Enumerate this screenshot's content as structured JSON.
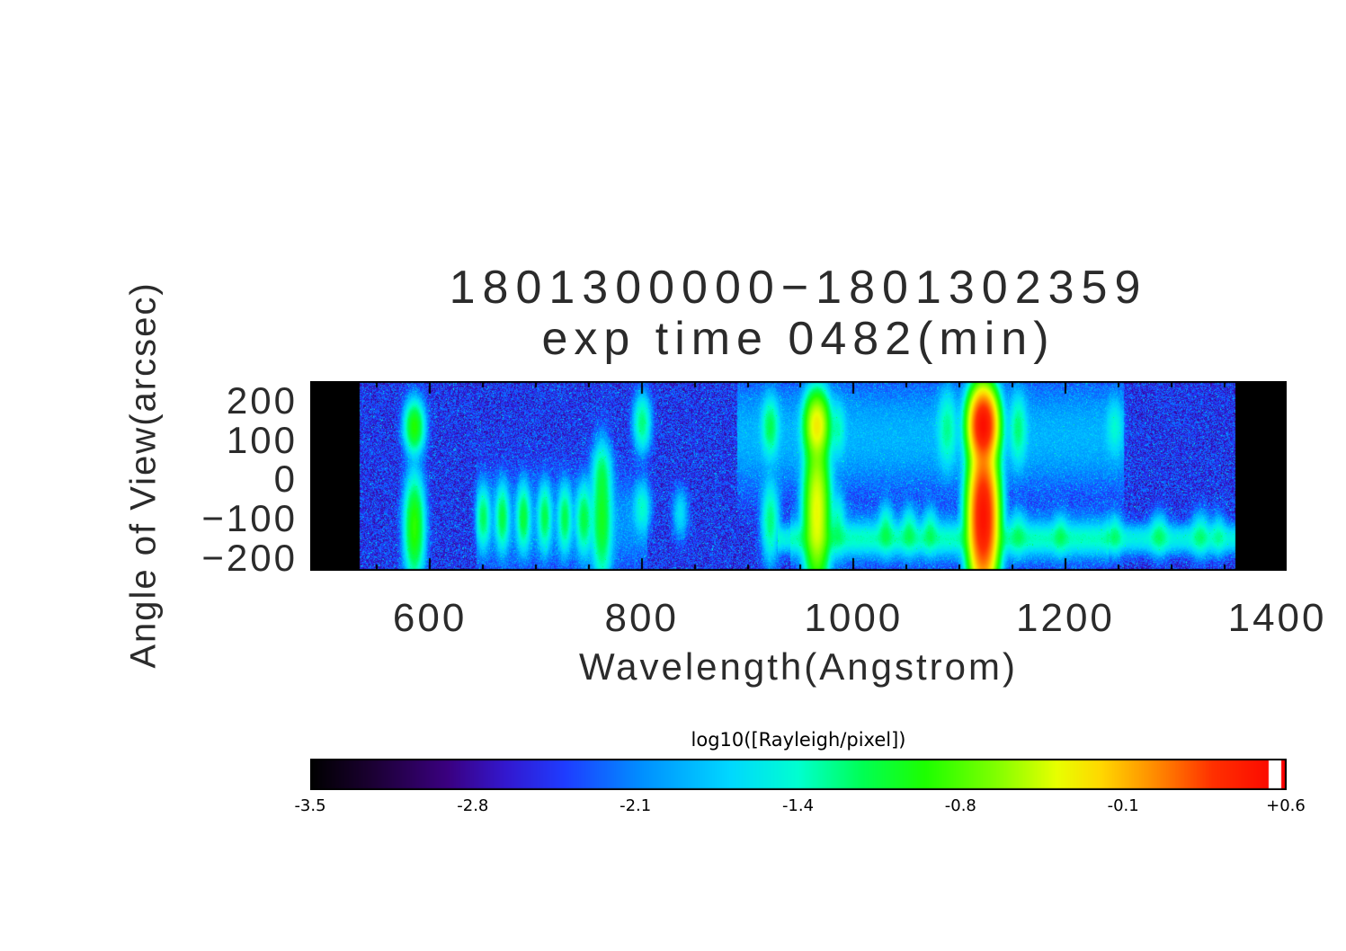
{
  "page": {
    "background": "#ffffff",
    "text_color": "#2b2b2b"
  },
  "title": {
    "line1": "1801300000−1801302359",
    "line2": "exp time 0482(min)"
  },
  "x_axis": {
    "label": "Wavelength(Angstrom)",
    "tick_labels": [
      "600",
      "800",
      "1000",
      "1200",
      "1400"
    ]
  },
  "y_axis": {
    "label": "Angle of View(arcsec)",
    "tick_labels": [
      "200",
      "100",
      "0",
      "−100",
      "−200"
    ]
  },
  "colorbar": {
    "label": "log10([Rayleigh/pixel])",
    "tick_labels": [
      "-3.5",
      "-2.8",
      "-2.1",
      "-1.4",
      "-0.8",
      "-0.1",
      "+0.6"
    ]
  },
  "chart_data": {
    "type": "heatmap",
    "title": "1801300000-1801302359",
    "subtitle": "exp time 0482(min)",
    "xlabel": "Wavelength(Angstrom)",
    "ylabel": "Angle of View(arcsec)",
    "value_label": "log10([Rayleigh/pixel])",
    "xlim": [
      487,
      1408
    ],
    "ylim": [
      -230,
      250
    ],
    "x_ticks": [
      600,
      800,
      1000,
      1200,
      1400
    ],
    "x_minor_step": 50,
    "y_ticks": [
      200,
      100,
      0,
      -100,
      -200
    ],
    "y_minor_step": 50,
    "value_range": [
      -3.5,
      0.6
    ],
    "colorbar_ticks": [
      -3.5,
      -2.8,
      -2.1,
      -1.4,
      -0.8,
      -0.1,
      0.6
    ],
    "colorbar_white_notch": [
      0.982,
      0.995
    ],
    "data_wavelength_range": [
      533,
      1360
    ],
    "colormap_stops": [
      [
        0.0,
        "#000000"
      ],
      [
        0.06,
        "#1a0030"
      ],
      [
        0.14,
        "#3a0080"
      ],
      [
        0.2,
        "#3318cf"
      ],
      [
        0.26,
        "#1f3cff"
      ],
      [
        0.34,
        "#0090ff"
      ],
      [
        0.43,
        "#00d8ff"
      ],
      [
        0.5,
        "#00ffd0"
      ],
      [
        0.565,
        "#00ff55"
      ],
      [
        0.63,
        "#1dff00"
      ],
      [
        0.7,
        "#7dff00"
      ],
      [
        0.765,
        "#e8ff00"
      ],
      [
        0.81,
        "#ffd800"
      ],
      [
        0.865,
        "#ff8c00"
      ],
      [
        0.925,
        "#ff3000"
      ],
      [
        1.0,
        "#fb0000"
      ]
    ],
    "noise": {
      "base": -2.5,
      "spread": 0.8,
      "sparkle_p": 0.02,
      "sparkle_gain": 5
    },
    "features": [
      {
        "x": 585,
        "sx": 5,
        "segments": [
          {
            "y": 135,
            "sy": 35,
            "peak": -0.92
          },
          {
            "y": -120,
            "sy": 68,
            "peak": -0.88
          }
        ]
      },
      {
        "x": 650,
        "sx": 3.5,
        "segments": [
          {
            "y": -95,
            "sy": 42,
            "peak": -1.25
          }
        ]
      },
      {
        "x": 668,
        "sx": 3.5,
        "segments": [
          {
            "y": -95,
            "sy": 45,
            "peak": -1.18
          }
        ]
      },
      {
        "x": 688,
        "sx": 3.5,
        "segments": [
          {
            "y": -95,
            "sy": 45,
            "peak": -1.15
          }
        ]
      },
      {
        "x": 708,
        "sx": 3.5,
        "segments": [
          {
            "y": -95,
            "sy": 45,
            "peak": -1.2
          }
        ]
      },
      {
        "x": 727,
        "sx": 3.5,
        "segments": [
          {
            "y": -98,
            "sy": 45,
            "peak": -1.2
          }
        ]
      },
      {
        "x": 745,
        "sx": 4,
        "segments": [
          {
            "y": -100,
            "sy": 48,
            "peak": -1.18
          }
        ]
      },
      {
        "x": 762,
        "sx": 5,
        "segments": [
          {
            "y": -100,
            "sy": 85,
            "peak": -1.05
          },
          {
            "y": 20,
            "sy": 40,
            "peak": -1.5
          }
        ]
      },
      {
        "x": 800,
        "sx": 4.5,
        "segments": [
          {
            "y": 145,
            "sy": 40,
            "peak": -1.3
          },
          {
            "y": -70,
            "sy": 35,
            "peak": -1.55
          }
        ]
      },
      {
        "x": 836,
        "sx": 4,
        "segments": [
          {
            "y": -85,
            "sy": 35,
            "peak": -1.75
          }
        ]
      },
      {
        "x": 921,
        "sx": 4.5,
        "segments": [
          {
            "y": 135,
            "sy": 42,
            "peak": -1.25
          },
          {
            "y": -105,
            "sy": 55,
            "peak": -1.3
          }
        ]
      },
      {
        "x": 965,
        "sx": 6,
        "segments": [
          {
            "y": 140,
            "sy": 42,
            "peak": -0.3
          },
          {
            "y": -80,
            "sy": 95,
            "peak": -0.35
          }
        ]
      },
      {
        "x": 985,
        "sx": 4,
        "segments": [
          {
            "y": 130,
            "sy": 40,
            "peak": -1.55
          },
          {
            "y": -110,
            "sy": 45,
            "peak": -1.5
          }
        ]
      },
      {
        "x": 1030,
        "sx": 4,
        "segments": [
          {
            "y": -125,
            "sy": 35,
            "peak": -1.42
          }
        ]
      },
      {
        "x": 1052,
        "sx": 4,
        "segments": [
          {
            "y": -128,
            "sy": 33,
            "peak": -1.48
          }
        ]
      },
      {
        "x": 1072,
        "sx": 4,
        "segments": [
          {
            "y": -128,
            "sy": 33,
            "peak": -1.52
          }
        ]
      },
      {
        "x": 1088,
        "sx": 5,
        "segments": [
          {
            "y": 130,
            "sy": 55,
            "peak": -1.42
          }
        ]
      },
      {
        "x": 1122,
        "sx": 6.5,
        "segments": [
          {
            "y": 140,
            "sy": 45,
            "peak": 0.5
          },
          {
            "y": -95,
            "sy": 88,
            "peak": 0.48
          }
        ]
      },
      {
        "x": 1155,
        "sx": 4.5,
        "segments": [
          {
            "y": 130,
            "sy": 50,
            "peak": -1.35
          },
          {
            "y": -135,
            "sy": 33,
            "peak": -1.55
          }
        ]
      },
      {
        "x": 1195,
        "sx": 4,
        "segments": [
          {
            "y": -140,
            "sy": 30,
            "peak": -1.55
          }
        ]
      },
      {
        "x": 1246,
        "sx": 4.5,
        "segments": [
          {
            "y": -140,
            "sy": 30,
            "peak": -1.48
          },
          {
            "y": 135,
            "sy": 40,
            "peak": -1.65
          }
        ]
      },
      {
        "x": 1288,
        "sx": 5,
        "segments": [
          {
            "y": -140,
            "sy": 30,
            "peak": -1.45
          }
        ]
      },
      {
        "x": 1327,
        "sx": 5,
        "segments": [
          {
            "y": -140,
            "sy": 32,
            "peak": -1.5
          }
        ]
      },
      {
        "x": 1344,
        "sx": 4,
        "segments": [
          {
            "y": -140,
            "sy": 30,
            "peak": -1.65
          }
        ]
      }
    ],
    "horizontal_bands": [
      {
        "x0": 928,
        "x1": 1360,
        "y": -150,
        "sy": 20,
        "peak": -1.62
      },
      {
        "x0": 940,
        "x1": 1240,
        "y": -148,
        "sy": 36,
        "peak": -1.95
      },
      {
        "x0": 890,
        "x1": 1255,
        "y": 110,
        "sy": 80,
        "peak": -2.08
      },
      {
        "x0": 644,
        "x1": 805,
        "y": -110,
        "sy": 70,
        "peak": -2.3
      }
    ]
  }
}
